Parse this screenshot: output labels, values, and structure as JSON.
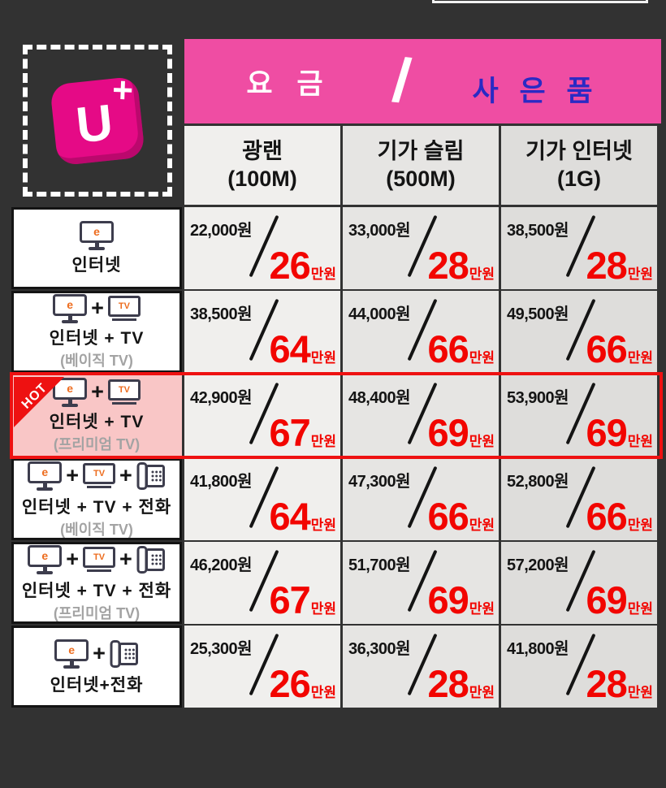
{
  "colors": {
    "background": "#323232",
    "header_pink": "#ef4da3",
    "gift_blue": "#2a2ac4",
    "price_red": "#f20500",
    "hot_red": "#ee1111",
    "hot_row_pink": "#f9c6c6",
    "logo_magenta": "#e50a86",
    "icon_orange": "#ed6c1e"
  },
  "logo": {
    "u": "U",
    "plus": "+"
  },
  "header": {
    "fee": "요 금",
    "divider": "/",
    "gift": "사 은 품"
  },
  "columns": [
    {
      "name": "광랜",
      "speed": "(100M)"
    },
    {
      "name": "기가 슬림",
      "speed": "(500M)"
    },
    {
      "name": "기가 인터넷",
      "speed": "(1G)"
    }
  ],
  "badge_hot": "HOT",
  "icon_glyphs": {
    "monitor": "e",
    "tv": "TV",
    "plus": "+"
  },
  "rows": [
    {
      "label": "인터넷",
      "sub": "",
      "hot": false,
      "icons": [
        "monitor"
      ],
      "prices": [
        {
          "monthly": "22,000원",
          "gift": "26",
          "unit": "만원"
        },
        {
          "monthly": "33,000원",
          "gift": "28",
          "unit": "만원"
        },
        {
          "monthly": "38,500원",
          "gift": "28",
          "unit": "만원"
        }
      ]
    },
    {
      "label": "인터넷 + TV",
      "sub": "(베이직 TV)",
      "hot": false,
      "icons": [
        "monitor",
        "plus",
        "tv"
      ],
      "prices": [
        {
          "monthly": "38,500원",
          "gift": "64",
          "unit": "만원"
        },
        {
          "monthly": "44,000원",
          "gift": "66",
          "unit": "만원"
        },
        {
          "monthly": "49,500원",
          "gift": "66",
          "unit": "만원"
        }
      ]
    },
    {
      "label": "인터넷 + TV",
      "sub": "(프리미엄 TV)",
      "hot": true,
      "icons": [
        "monitor",
        "plus",
        "tv"
      ],
      "prices": [
        {
          "monthly": "42,900원",
          "gift": "67",
          "unit": "만원"
        },
        {
          "monthly": "48,400원",
          "gift": "69",
          "unit": "만원"
        },
        {
          "monthly": "53,900원",
          "gift": "69",
          "unit": "만원"
        }
      ]
    },
    {
      "label": "인터넷 + TV + 전화",
      "sub": "(베이직 TV)",
      "hot": false,
      "icons": [
        "monitor",
        "plus",
        "tv",
        "plus",
        "phone"
      ],
      "prices": [
        {
          "monthly": "41,800원",
          "gift": "64",
          "unit": "만원"
        },
        {
          "monthly": "47,300원",
          "gift": "66",
          "unit": "만원"
        },
        {
          "monthly": "52,800원",
          "gift": "66",
          "unit": "만원"
        }
      ]
    },
    {
      "label": "인터넷 + TV + 전화",
      "sub": "(프리미엄 TV)",
      "hot": false,
      "icons": [
        "monitor",
        "plus",
        "tv",
        "plus",
        "phone"
      ],
      "prices": [
        {
          "monthly": "46,200원",
          "gift": "67",
          "unit": "만원"
        },
        {
          "monthly": "51,700원",
          "gift": "69",
          "unit": "만원"
        },
        {
          "monthly": "57,200원",
          "gift": "69",
          "unit": "만원"
        }
      ]
    },
    {
      "label": "인터넷+전화",
      "sub": "",
      "hot": false,
      "icons": [
        "monitor",
        "plus",
        "phone"
      ],
      "prices": [
        {
          "monthly": "25,300원",
          "gift": "26",
          "unit": "만원"
        },
        {
          "monthly": "36,300원",
          "gift": "28",
          "unit": "만원"
        },
        {
          "monthly": "41,800원",
          "gift": "28",
          "unit": "만원"
        }
      ]
    }
  ]
}
